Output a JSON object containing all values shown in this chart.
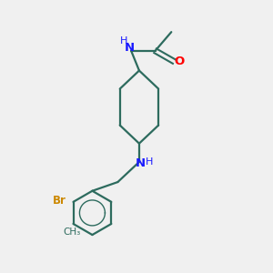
{
  "background_color": "#f0f0f0",
  "bond_color": "#2d6b5e",
  "N_color": "#1a1aff",
  "O_color": "#ff0000",
  "Br_color": "#cc8800",
  "figsize": [
    3.0,
    3.0
  ],
  "dpi": 100,
  "xlim": [
    0,
    10
  ],
  "ylim": [
    0,
    10
  ]
}
